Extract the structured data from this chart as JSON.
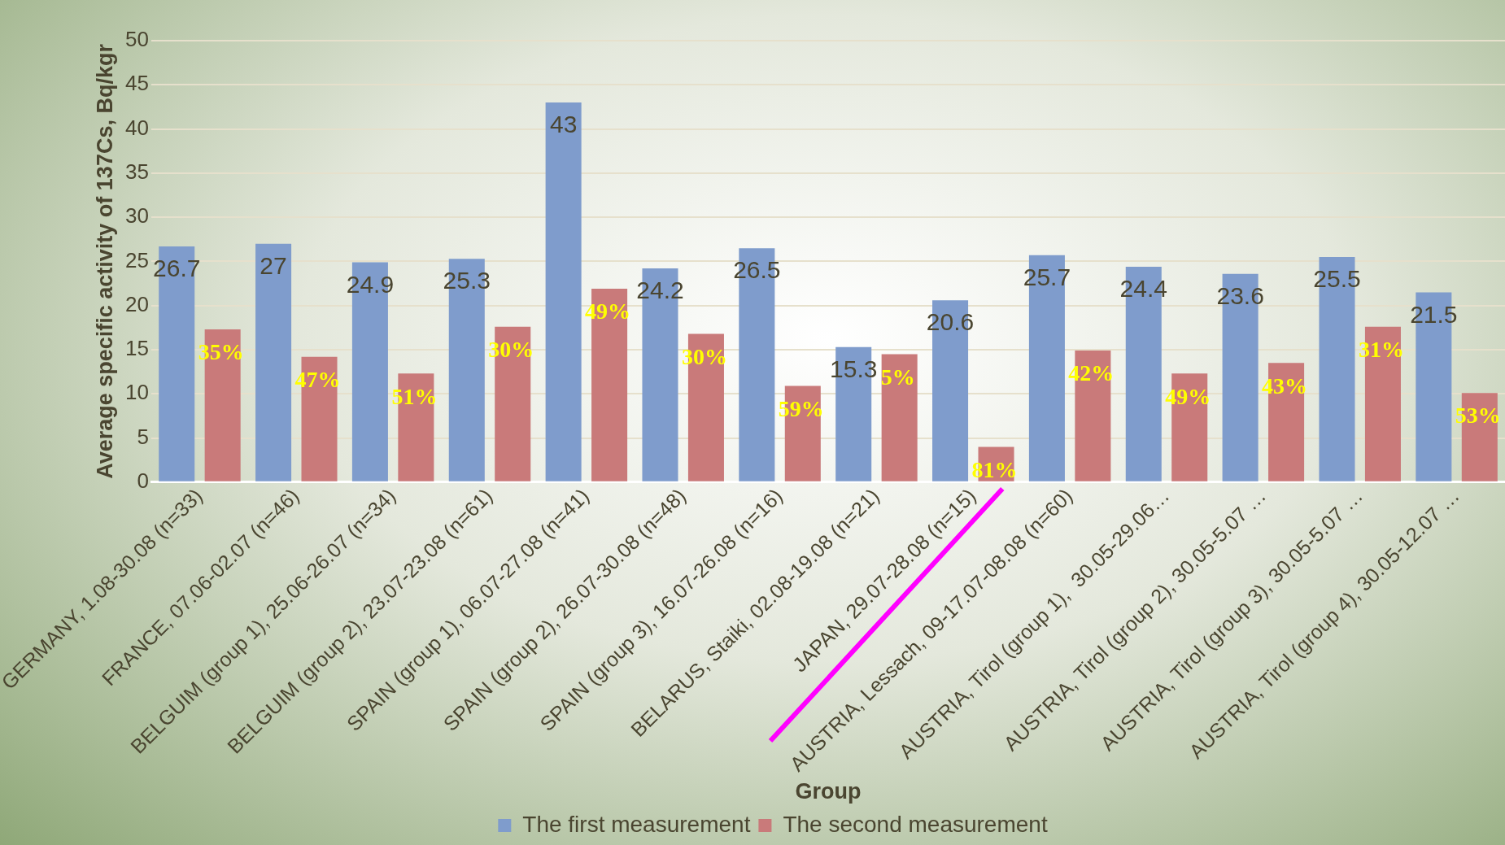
{
  "chart_data": {
    "type": "bar",
    "xlabel": "Group",
    "ylabel": "Average specific activity of 137Cs, Bq/kgr",
    "categories": [
      "GERMANY, 1.08-30.08 (n=33)",
      "FRANCE, 07.06-02.07 (n=46)",
      "BELGUIM (group 1), 25.06-26.07 (n=34)",
      "BELGUIM (group 2), 23.07-23.08 (n=61)",
      "SPAIN (group 1), 06.07-27.08 (n=41)",
      "SPAIN (group 2), 26.07-30.08 (n=48)",
      "SPAIN (group 3), 16.07-26.08 (n=16)",
      "BELARUS, Staiki, 02.08-19.08 (n=21)",
      "JAPAN, 29.07-28.08 (n=15)",
      "AUSTRIA, Lessach, 09-17.07-08.08 (n=60)",
      "AUSTRIA, Tirol (group 1),  30.05-29.06…",
      "AUSTRIA, Tirol (group 2), 30.05-5.07 …",
      "AUSTRIA, Tirol (group 3), 30.05-5.07 …",
      "AUSTRIA, Tirol (group 4), 30.05-12.07 …"
    ],
    "series": [
      {
        "name": "The first measurement",
        "color": "#7f9ccc",
        "values": [
          26.7,
          27,
          24.9,
          25.3,
          43,
          24.2,
          26.5,
          15.3,
          20.6,
          25.7,
          24.4,
          23.6,
          25.5,
          21.5
        ],
        "value_labels": [
          "26.7",
          "27",
          "24.9",
          "25.3",
          "43",
          "24.2",
          "26.5",
          "15.3",
          "20.6",
          "25.7",
          "24.4",
          "23.6",
          "25.5",
          "21.5"
        ]
      },
      {
        "name": "The second measurement",
        "color": "#c97a7a",
        "values": [
          17.3,
          14.2,
          12.3,
          17.6,
          21.9,
          16.8,
          10.9,
          14.5,
          4,
          14.9,
          12.3,
          13.5,
          17.6,
          10.1
        ]
      }
    ],
    "annotations": [
      "35%",
      "47%",
      "51%",
      "30%",
      "49%",
      "30%",
      "59%",
      "5%",
      "81%",
      "42%",
      "49%",
      "43%",
      "31%",
      "53%"
    ],
    "ylim": [
      0,
      50
    ],
    "yticks": [
      0,
      5,
      10,
      15,
      20,
      25,
      30,
      35,
      40,
      45,
      50
    ],
    "grid": "y",
    "legend": "bottom"
  }
}
